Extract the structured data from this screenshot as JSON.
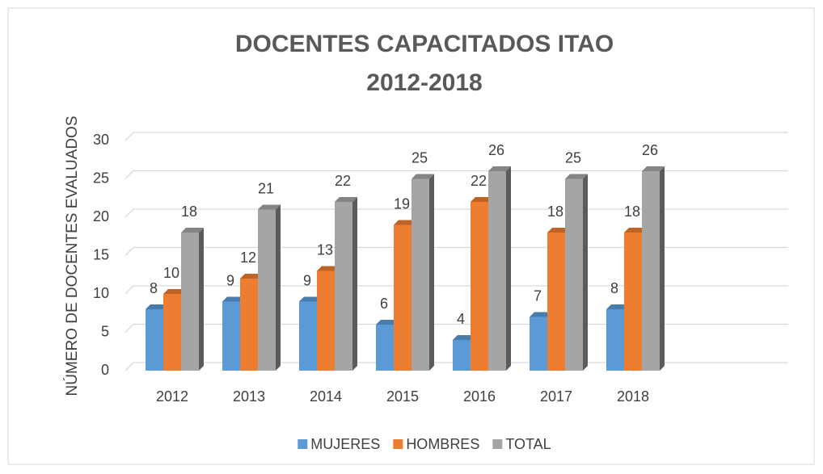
{
  "chart_data": {
    "type": "bar3d",
    "title": "DOCENTES CAPACITADOS ITAO",
    "subtitle": "2012-2018",
    "y_label": "NÚMERO DE DOCENTES EVALUADOS",
    "categories": [
      "2012",
      "2013",
      "2014",
      "2015",
      "2016",
      "2017",
      "2018"
    ],
    "series": [
      {
        "name": "MUJERES",
        "color": "#5b9bd5",
        "values": [
          8,
          9,
          9,
          6,
          4,
          7,
          8
        ]
      },
      {
        "name": "HOMBRES",
        "color": "#ed7d31",
        "values": [
          10,
          12,
          13,
          19,
          22,
          18,
          18
        ]
      },
      {
        "name": "TOTAL",
        "color": "#a5a5a5",
        "values": [
          18,
          21,
          22,
          25,
          26,
          25,
          26
        ]
      }
    ],
    "ylim": [
      0,
      30
    ],
    "yticks": [
      0,
      5,
      10,
      15,
      20,
      25,
      30
    ],
    "grid": true,
    "legend": "bottom"
  }
}
